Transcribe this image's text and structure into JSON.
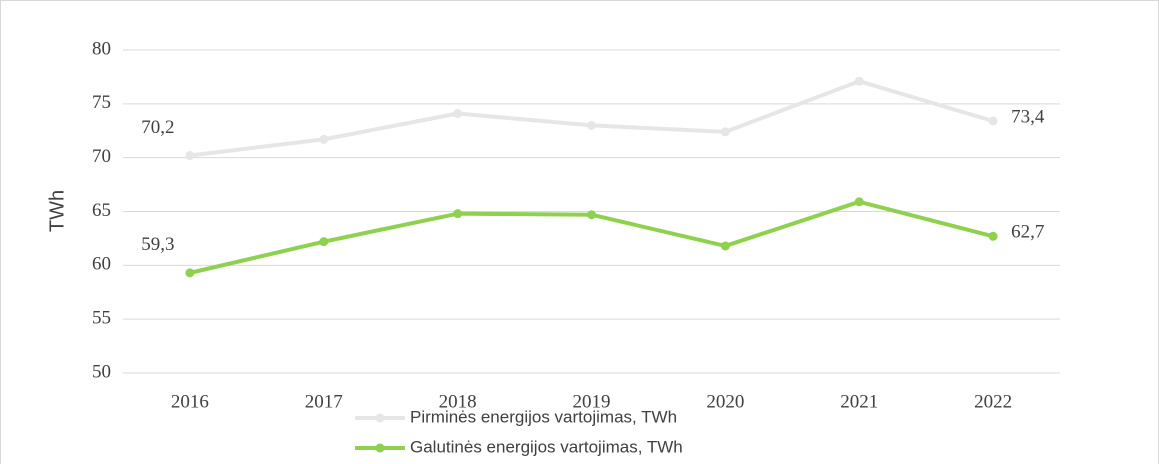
{
  "chart_data": {
    "type": "line",
    "y_label": "TWh",
    "categories": [
      "2016",
      "2017",
      "2018",
      "2019",
      "2020",
      "2021",
      "2022"
    ],
    "series": [
      {
        "name": "Pirminės energijos vartojimas, TWh",
        "color": "#e6e6e6",
        "values": [
          70.2,
          71.7,
          74.1,
          73.0,
          72.4,
          77.1,
          73.4
        ],
        "value_labels": [
          "70,2",
          null,
          null,
          null,
          null,
          null,
          "73,4"
        ]
      },
      {
        "name": "Galutinės energijos vartojimas, TWh",
        "color": "#8fd14f",
        "values": [
          59.3,
          62.2,
          64.8,
          64.7,
          61.8,
          65.9,
          62.7
        ],
        "value_labels": [
          "59,3",
          null,
          null,
          null,
          null,
          null,
          "62,7"
        ]
      }
    ],
    "ylim": [
      50,
      80
    ],
    "yticks": [
      50,
      55,
      60,
      65,
      70,
      75,
      80
    ],
    "grid": true
  }
}
